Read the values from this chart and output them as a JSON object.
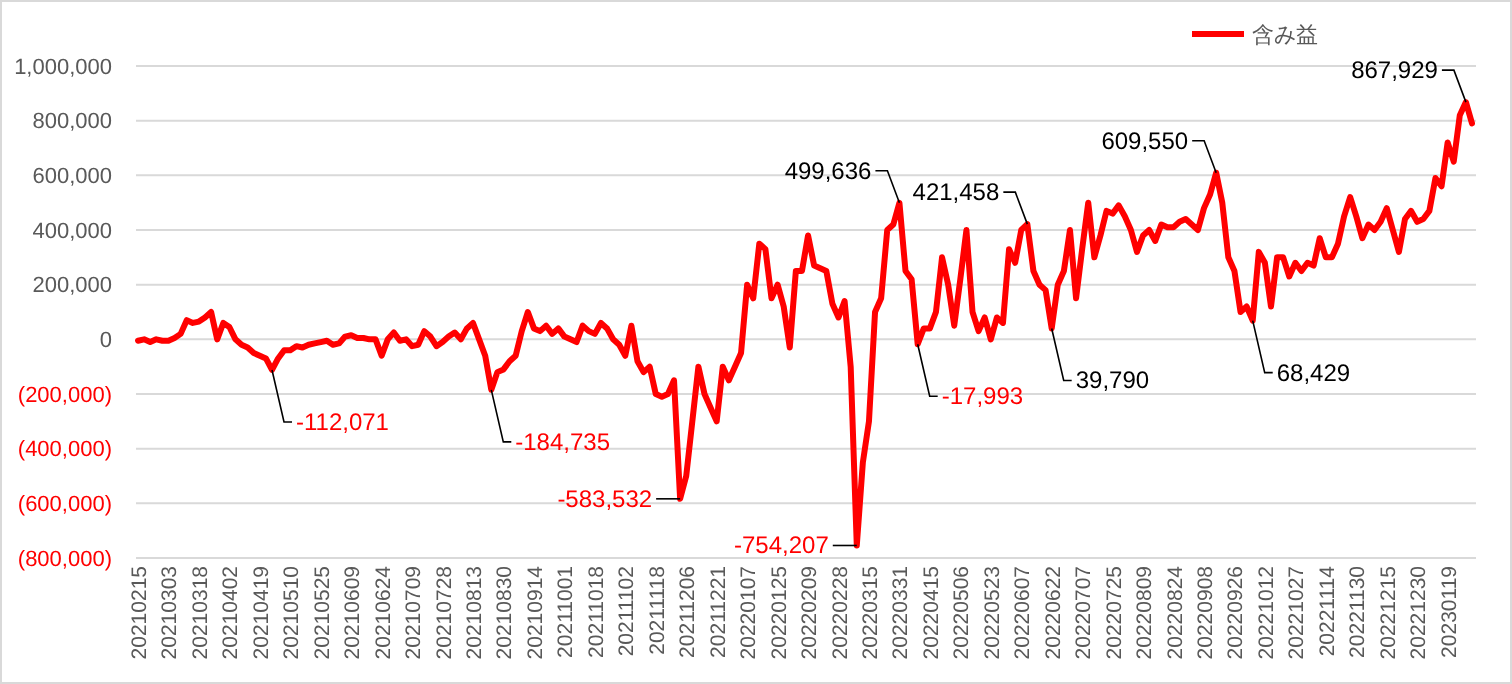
{
  "chart_data": {
    "type": "line",
    "legend": "top right",
    "grid": "y",
    "marker": "none",
    "line_style": "solid",
    "ylim": [
      -800000,
      1000000
    ],
    "yticks": [
      {
        "value": -800000,
        "label": "(800,000)"
      },
      {
        "value": -600000,
        "label": "(600,000)"
      },
      {
        "value": -400000,
        "label": "(400,000)"
      },
      {
        "value": -200000,
        "label": "(200,000)"
      },
      0,
      {
        "value": 200000,
        "label": "200,000"
      },
      {
        "value": 400000,
        "label": "400,000"
      },
      {
        "value": 600000,
        "label": "600,000"
      },
      {
        "value": 800000,
        "label": "800,000"
      },
      {
        "value": 1000000,
        "label": "1,000,000"
      }
    ],
    "categories": [
      "20210215",
      null,
      null,
      null,
      null,
      "20210303",
      null,
      null,
      null,
      null,
      "20210318",
      null,
      null,
      null,
      null,
      "20210402",
      null,
      null,
      null,
      null,
      "20210419",
      null,
      null,
      null,
      null,
      "20210510",
      null,
      null,
      null,
      null,
      "20210525",
      null,
      null,
      null,
      null,
      "20210609",
      null,
      null,
      null,
      null,
      "20210624",
      null,
      null,
      null,
      null,
      "20210709",
      null,
      null,
      null,
      null,
      "20210728",
      null,
      null,
      null,
      null,
      "20210813",
      null,
      null,
      null,
      null,
      "20210830",
      null,
      null,
      null,
      null,
      "20210914",
      null,
      null,
      null,
      null,
      "20211001",
      null,
      null,
      null,
      null,
      "20211018",
      null,
      null,
      null,
      null,
      "20211102",
      null,
      null,
      null,
      null,
      "20211118",
      null,
      null,
      null,
      null,
      "20211206",
      null,
      null,
      null,
      null,
      "20211221",
      null,
      null,
      null,
      null,
      "20220107",
      null,
      null,
      null,
      null,
      "20220125",
      null,
      null,
      null,
      null,
      "20220209",
      null,
      null,
      null,
      null,
      "20220228",
      null,
      null,
      null,
      null,
      "20220315",
      null,
      null,
      null,
      null,
      "20220331",
      null,
      null,
      null,
      null,
      "20220415",
      null,
      null,
      null,
      null,
      "20220506",
      null,
      null,
      null,
      null,
      "20220523",
      null,
      null,
      null,
      null,
      "20220607",
      null,
      null,
      null,
      null,
      "20220622",
      null,
      null,
      null,
      null,
      "20220707",
      null,
      null,
      null,
      null,
      "20220725",
      null,
      null,
      null,
      null,
      "20220809",
      null,
      null,
      null,
      null,
      "20220824",
      null,
      null,
      null,
      null,
      "20220908",
      null,
      null,
      null,
      null,
      "20220926",
      null,
      null,
      null,
      null,
      "20221012",
      null,
      null,
      null,
      null,
      "20221027",
      null,
      null,
      null,
      null,
      "20221114",
      null,
      null,
      null,
      null,
      "20221130",
      null,
      null,
      null,
      null,
      "20221215",
      null,
      null,
      null,
      null,
      "20221230",
      null,
      null,
      null,
      null,
      "20230119",
      null,
      null,
      null,
      null
    ],
    "series": [
      {
        "name": "含み益",
        "color": "#ff0000",
        "values": [
          -5000,
          0,
          -10000,
          0,
          -5000,
          -5000,
          5000,
          20000,
          70000,
          60000,
          65000,
          80000,
          100000,
          0,
          60000,
          45000,
          0,
          -20000,
          -30000,
          -50000,
          -60000,
          -70000,
          -112071,
          -70000,
          -40000,
          -40000,
          -25000,
          -30000,
          -20000,
          -15000,
          -10000,
          -5000,
          -20000,
          -15000,
          10000,
          15000,
          5000,
          5000,
          0,
          0,
          -60000,
          0,
          25000,
          -5000,
          0,
          -25000,
          -20000,
          30000,
          10000,
          -25000,
          -10000,
          10000,
          25000,
          0,
          40000,
          60000,
          0,
          -60000,
          -184735,
          -120000,
          -110000,
          -80000,
          -60000,
          30000,
          100000,
          40000,
          30000,
          50000,
          20000,
          40000,
          10000,
          0,
          -10000,
          50000,
          30000,
          20000,
          60000,
          40000,
          0,
          -20000,
          -60000,
          50000,
          -80000,
          -120000,
          -100000,
          -200000,
          -210000,
          -200000,
          -150000,
          -583532,
          -500000,
          -300000,
          -100000,
          -200000,
          -250000,
          -300000,
          -100000,
          -150000,
          -100000,
          -50000,
          200000,
          150000,
          350000,
          330000,
          150000,
          200000,
          120000,
          -30000,
          250000,
          250000,
          380000,
          270000,
          260000,
          250000,
          130000,
          80000,
          140000,
          -100000,
          -754207,
          -450000,
          -300000,
          100000,
          150000,
          400000,
          420000,
          499636,
          250000,
          220000,
          -17993,
          40000,
          40000,
          100000,
          300000,
          200000,
          50000,
          220000,
          400000,
          100000,
          30000,
          80000,
          0,
          80000,
          60000,
          330000,
          280000,
          400000,
          421458,
          250000,
          200000,
          180000,
          39790,
          200000,
          250000,
          400000,
          150000,
          330000,
          500000,
          300000,
          380000,
          470000,
          460000,
          490000,
          450000,
          400000,
          320000,
          380000,
          400000,
          360000,
          420000,
          410000,
          410000,
          430000,
          440000,
          420000,
          400000,
          480000,
          530000,
          609550,
          500000,
          300000,
          250000,
          100000,
          120000,
          68429,
          320000,
          280000,
          120000,
          300000,
          300000,
          230000,
          280000,
          250000,
          280000,
          270000,
          370000,
          300000,
          300000,
          350000,
          450000,
          520000,
          450000,
          370000,
          420000,
          400000,
          430000,
          480000,
          400000,
          320000,
          440000,
          470000,
          430000,
          440000,
          470000,
          590000,
          560000,
          720000,
          650000,
          820000,
          867929,
          790000
        ],
        "value_labels": [
          null,
          null,
          null,
          null,
          null,
          null,
          null,
          null,
          null,
          null,
          null,
          null,
          null,
          null,
          null,
          null,
          null,
          null,
          null,
          null,
          null,
          null,
          "-112,071",
          null,
          null,
          null,
          null,
          null,
          null,
          null,
          null,
          null,
          null,
          null,
          null,
          null,
          null,
          null,
          null,
          null,
          null,
          null,
          null,
          null,
          null,
          null,
          null,
          null,
          null,
          null,
          null,
          null,
          null,
          null,
          null,
          null,
          null,
          null,
          "-184,735",
          null,
          null,
          null,
          null,
          null,
          null,
          null,
          null,
          null,
          null,
          null,
          null,
          null,
          null,
          null,
          null,
          null,
          null,
          null,
          null,
          null,
          null,
          null,
          null,
          null,
          null,
          null,
          null,
          null,
          null,
          "-583,532",
          null,
          null,
          null,
          null,
          null,
          null,
          null,
          null,
          null,
          null,
          null,
          null,
          null,
          null,
          null,
          null,
          null,
          null,
          null,
          null,
          null,
          null,
          null,
          null,
          null,
          null,
          null,
          null,
          "-754,207",
          null,
          null,
          null,
          null,
          null,
          null,
          "499,636",
          null,
          null,
          "-17,993",
          null,
          null,
          null,
          null,
          null,
          null,
          null,
          null,
          null,
          null,
          null,
          null,
          null,
          null,
          null,
          null,
          null,
          "421,458",
          null,
          null,
          null,
          "39,790",
          null,
          null,
          null,
          null,
          null,
          null,
          null,
          null,
          null,
          null,
          null,
          null,
          null,
          null,
          null,
          null,
          null,
          null,
          null,
          null,
          null,
          null,
          null,
          null,
          null,
          null,
          "609,550",
          null,
          null,
          null,
          null,
          null,
          "68,429",
          null,
          null,
          null,
          null,
          null,
          null,
          null,
          null,
          null,
          null,
          null,
          null,
          null,
          null,
          null,
          null,
          null,
          null,
          null,
          null,
          null,
          null,
          null,
          null,
          null,
          null,
          null,
          null,
          null,
          null,
          null,
          null,
          null,
          null,
          "867,929",
          null
        ]
      }
    ]
  }
}
